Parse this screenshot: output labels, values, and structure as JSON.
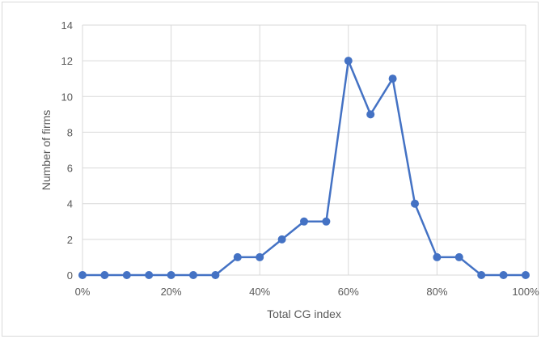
{
  "chart_data": {
    "type": "line",
    "title": "",
    "xlabel": "Total CG index",
    "ylabel": "Number of firms",
    "x": [
      0,
      5,
      10,
      15,
      20,
      25,
      30,
      35,
      40,
      45,
      50,
      55,
      60,
      65,
      70,
      75,
      80,
      85,
      90,
      95,
      100
    ],
    "series": [
      {
        "values": [
          0,
          0,
          0,
          0,
          0,
          0,
          0,
          1,
          1,
          2,
          3,
          3,
          12,
          9,
          11,
          4,
          1,
          1,
          0,
          0,
          0
        ]
      }
    ],
    "xlim": [
      0,
      100
    ],
    "ylim": [
      0,
      14
    ],
    "x_ticks": [
      "0%",
      "20%",
      "40%",
      "60%",
      "80%",
      "100%"
    ],
    "y_ticks": [
      "0",
      "2",
      "4",
      "6",
      "8",
      "10",
      "12",
      "14"
    ],
    "grid": true,
    "legend": "none",
    "line_color": "#4472c4",
    "grid_color": "#d9d9d9"
  }
}
